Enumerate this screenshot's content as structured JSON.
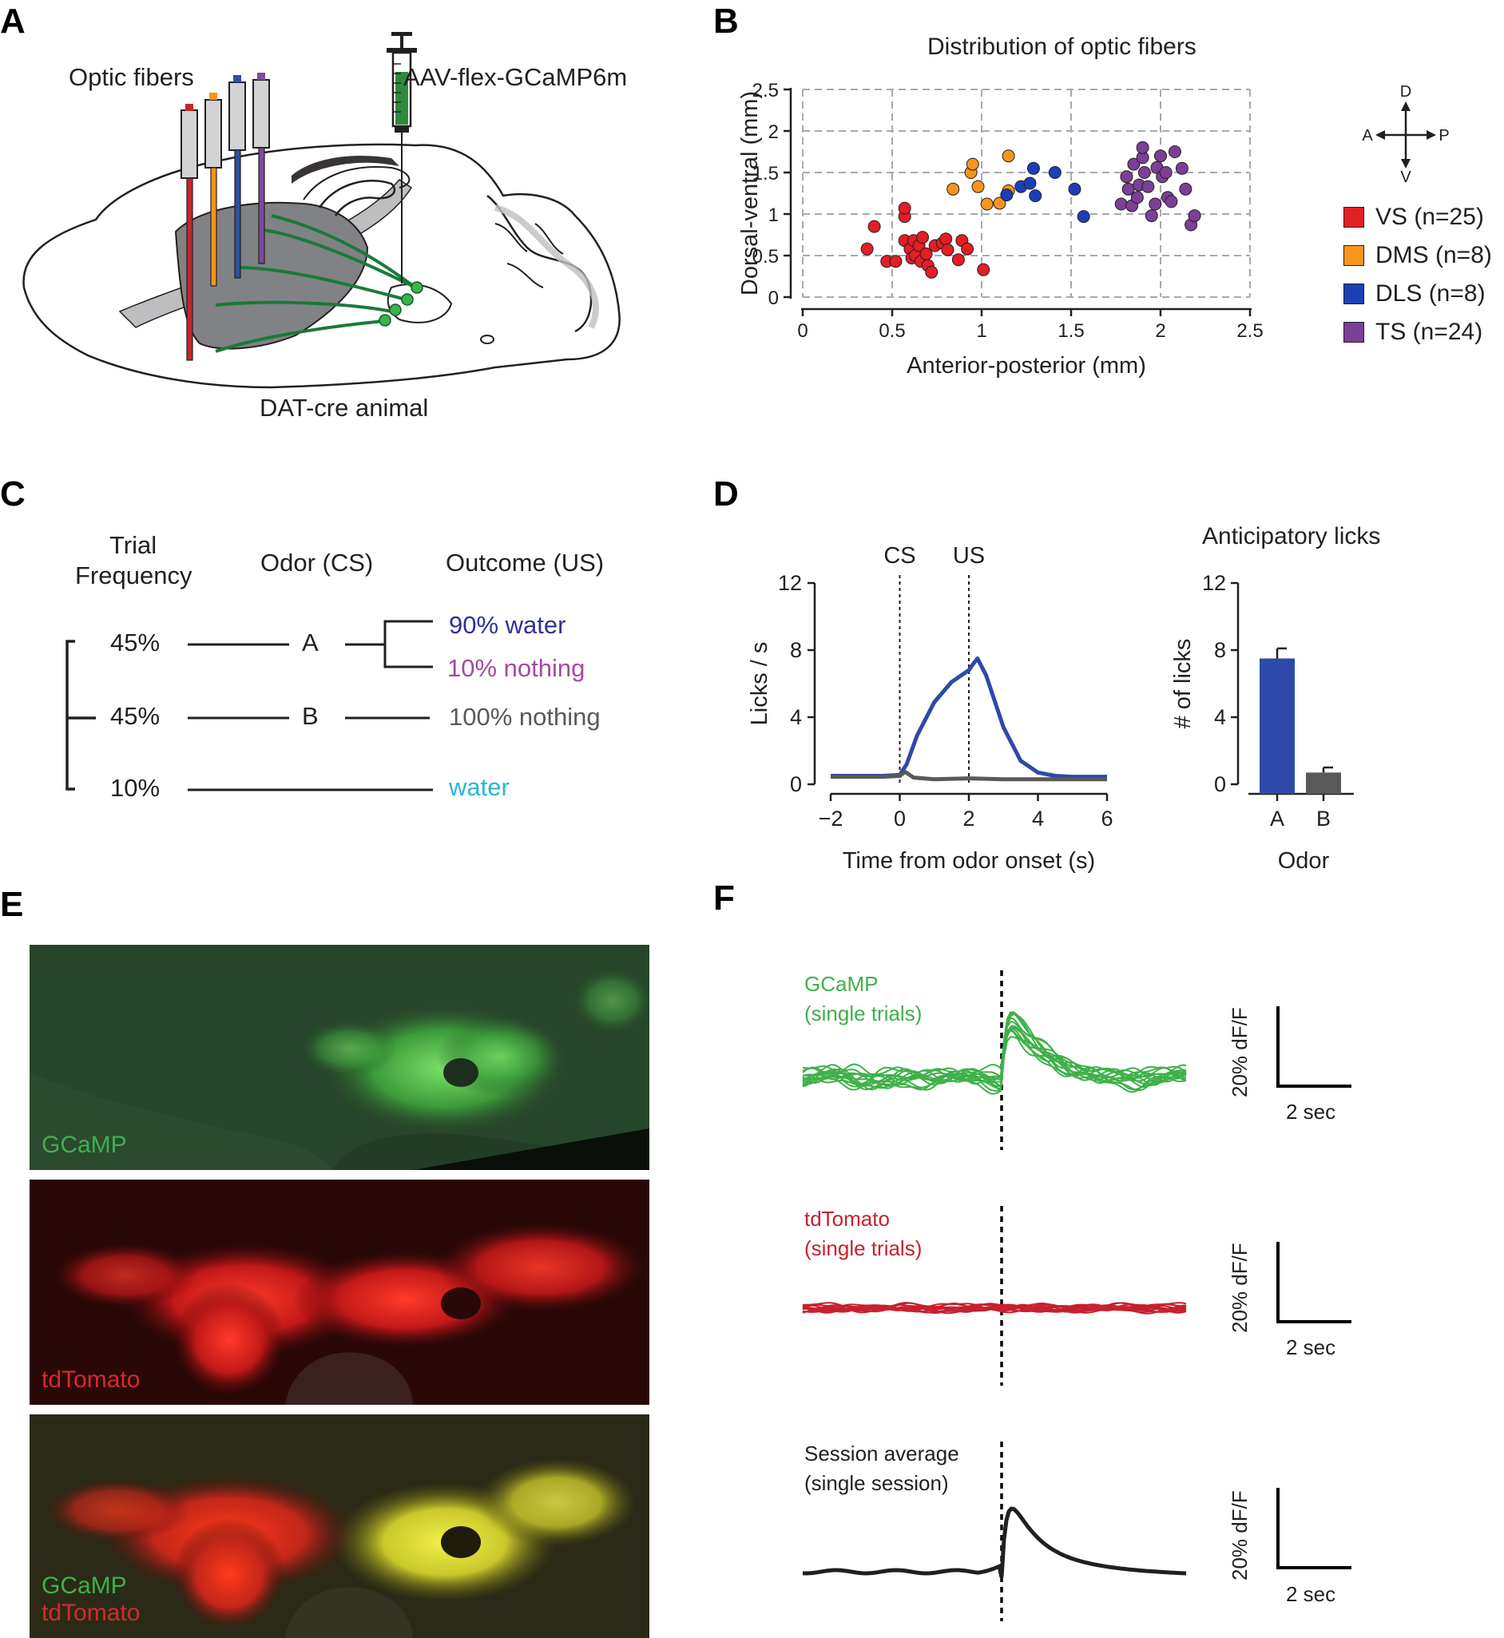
{
  "panels": {
    "a": {
      "letter": "A",
      "fibers_label": "Optic fibers",
      "virus_label": "AAV-flex-GCaMP6m",
      "animal_label": "DAT-cre animal",
      "fiber_colors": [
        "#c1272d",
        "#f7941d",
        "#2e4fa1",
        "#7b4b9a"
      ],
      "projection_color": "#1a7a3a"
    },
    "b": {
      "letter": "B",
      "title": "Distribution of optic fibers",
      "compass": {
        "d": "D",
        "v": "V",
        "a": "A",
        "p": "P"
      },
      "legend": [
        {
          "label": "VS (n=25)",
          "color": "#e31e24"
        },
        {
          "label": "DMS (n=8)",
          "color": "#f7941d"
        },
        {
          "label": "DLS (n=8)",
          "color": "#1c3fb7"
        },
        {
          "label": "TS (n=24)",
          "color": "#7b3f98"
        }
      ]
    },
    "c": {
      "letter": "C",
      "headers": {
        "freq_line1": "Trial",
        "freq_line2": "Frequency",
        "odor": "Odor (CS)",
        "outcome": "Outcome (US)"
      },
      "rows": [
        {
          "freq": "45%",
          "odor": "A"
        },
        {
          "freq": "45%",
          "odor": "B"
        },
        {
          "freq": "10%",
          "odor": ""
        }
      ],
      "outcomes": [
        {
          "text": "90% water",
          "color": "#2e3192"
        },
        {
          "text": "10% nothing",
          "color": "#a349a4"
        },
        {
          "text": "100% nothing",
          "color": "#58595b"
        },
        {
          "text": "water",
          "color": "#29b6d6"
        }
      ]
    },
    "d": {
      "letter": "D",
      "bar_title": "Anticipatory licks",
      "cs_label": "CS",
      "us_label": "US"
    },
    "e": {
      "letter": "E",
      "labels": {
        "gcamp": "GCaMP",
        "tdtomato": "tdTomato",
        "merge_gcamp": "GCaMP",
        "merge_tdtomato": "tdTomato"
      },
      "colors": {
        "gcamp": "#3fb04a",
        "tdtomato": "#d42a2a"
      }
    },
    "f": {
      "letter": "F",
      "gcamp_label": {
        "line1": "GCaMP",
        "line2": "(single trials)",
        "color": "#3fb04a"
      },
      "tdtomato_label": {
        "line1": "tdTomato",
        "line2": "(single trials)",
        "color": "#c8202e"
      },
      "average_label": {
        "line1": "Session average",
        "line2": "(single session)",
        "color": "#231f20"
      },
      "scalebar_y": "20% dF/F",
      "scalebar_x": "2 sec"
    }
  },
  "chart_data": [
    {
      "id": "fiber-distribution",
      "type": "scatter",
      "title": "Distribution of optic fibers",
      "xlabel": "Anterior-posterior (mm)",
      "ylabel": "Dorsal-ventral (mm)",
      "xlim": [
        0,
        2.5
      ],
      "ylim": [
        0,
        2.5
      ],
      "xticks": [
        "0",
        "0.5",
        "1",
        "1.5",
        "2",
        "2.5"
      ],
      "yticks": [
        "0",
        "0.5",
        "1",
        "1.5",
        "2",
        "2.5"
      ],
      "grid": true,
      "series": [
        {
          "name": "VS (n=25)",
          "color": "#e31e24",
          "points": [
            [
              0.4,
              0.85
            ],
            [
              0.36,
              0.58
            ],
            [
              0.47,
              0.43
            ],
            [
              0.52,
              0.43
            ],
            [
              0.57,
              0.97
            ],
            [
              0.57,
              1.07
            ],
            [
              0.57,
              0.68
            ],
            [
              0.6,
              0.58
            ],
            [
              0.61,
              0.47
            ],
            [
              0.63,
              0.5
            ],
            [
              0.62,
              0.68
            ],
            [
              0.65,
              0.62
            ],
            [
              0.66,
              0.43
            ],
            [
              0.67,
              0.72
            ],
            [
              0.69,
              0.52
            ],
            [
              0.7,
              0.38
            ],
            [
              0.72,
              0.3
            ],
            [
              0.74,
              0.62
            ],
            [
              0.78,
              0.65
            ],
            [
              0.8,
              0.7
            ],
            [
              0.81,
              0.57
            ],
            [
              0.87,
              0.45
            ],
            [
              0.89,
              0.68
            ],
            [
              0.92,
              0.58
            ],
            [
              1.01,
              0.33
            ]
          ]
        },
        {
          "name": "DMS (n=8)",
          "color": "#f7941d",
          "points": [
            [
              0.84,
              1.3
            ],
            [
              0.94,
              1.5
            ],
            [
              0.95,
              1.6
            ],
            [
              0.98,
              1.33
            ],
            [
              1.03,
              1.12
            ],
            [
              1.1,
              1.13
            ],
            [
              1.15,
              1.28
            ],
            [
              1.15,
              1.7
            ]
          ]
        },
        {
          "name": "DLS (n=8)",
          "color": "#1c3fb7",
          "points": [
            [
              1.14,
              1.23
            ],
            [
              1.22,
              1.33
            ],
            [
              1.27,
              1.37
            ],
            [
              1.29,
              1.55
            ],
            [
              1.3,
              1.22
            ],
            [
              1.41,
              1.5
            ],
            [
              1.52,
              1.3
            ],
            [
              1.57,
              0.97
            ]
          ]
        },
        {
          "name": "TS (n=24)",
          "color": "#7b3f98",
          "points": [
            [
              1.78,
              1.12
            ],
            [
              1.81,
              1.45
            ],
            [
              1.82,
              1.3
            ],
            [
              1.84,
              1.1
            ],
            [
              1.85,
              1.6
            ],
            [
              1.87,
              1.2
            ],
            [
              1.88,
              1.35
            ],
            [
              1.9,
              1.68
            ],
            [
              1.9,
              1.8
            ],
            [
              1.91,
              1.5
            ],
            [
              1.93,
              1.33
            ],
            [
              1.95,
              0.98
            ],
            [
              1.97,
              1.12
            ],
            [
              1.98,
              1.56
            ],
            [
              2.0,
              1.7
            ],
            [
              2.01,
              1.45
            ],
            [
              2.03,
              1.5
            ],
            [
              2.04,
              1.2
            ],
            [
              2.06,
              1.15
            ],
            [
              2.08,
              1.75
            ],
            [
              2.12,
              1.55
            ],
            [
              2.14,
              1.3
            ],
            [
              2.17,
              0.87
            ],
            [
              2.19,
              0.98
            ]
          ]
        }
      ]
    },
    {
      "id": "lick-timecourse",
      "type": "line",
      "xlabel": "Time from odor onset (s)",
      "ylabel": "Licks / s",
      "xlim": [
        -2,
        6
      ],
      "ylim": [
        0,
        12
      ],
      "xticks": [
        "−2",
        "0",
        "2",
        "4",
        "6"
      ],
      "yticks": [
        "0",
        "4",
        "8",
        "12"
      ],
      "markers": [
        {
          "x": 0,
          "label": "CS"
        },
        {
          "x": 2,
          "label": "US"
        }
      ],
      "series": [
        {
          "name": "Odor A",
          "color": "#2d4aa8",
          "x": [
            -2,
            -1,
            -0.5,
            0,
            0.2,
            0.5,
            1,
            1.5,
            2,
            2.1,
            2.25,
            2.5,
            3,
            3.5,
            4,
            4.5,
            5,
            6
          ],
          "y": [
            0.5,
            0.5,
            0.5,
            0.55,
            1.2,
            2.9,
            4.9,
            6.1,
            6.8,
            7.1,
            7.5,
            6.5,
            3.4,
            1.4,
            0.7,
            0.5,
            0.45,
            0.45
          ]
        },
        {
          "name": "Odor B",
          "color": "#58595b",
          "x": [
            -2,
            -1,
            -0.5,
            0,
            0.15,
            0.4,
            1,
            2,
            3,
            4,
            5,
            6
          ],
          "y": [
            0.45,
            0.45,
            0.45,
            0.5,
            0.75,
            0.4,
            0.3,
            0.35,
            0.3,
            0.3,
            0.3,
            0.3
          ]
        }
      ]
    },
    {
      "id": "anticipatory-licks",
      "type": "bar",
      "title": "Anticipatory licks",
      "xlabel": "Odor",
      "ylabel": "# of licks",
      "categories": [
        "A",
        "B"
      ],
      "values": [
        7.5,
        0.7
      ],
      "errors": [
        0.6,
        0.3
      ],
      "colors": [
        "#2d4aa8",
        "#58595b"
      ],
      "ylim": [
        0,
        12
      ],
      "yticks": [
        "0",
        "4",
        "8",
        "12"
      ]
    }
  ]
}
